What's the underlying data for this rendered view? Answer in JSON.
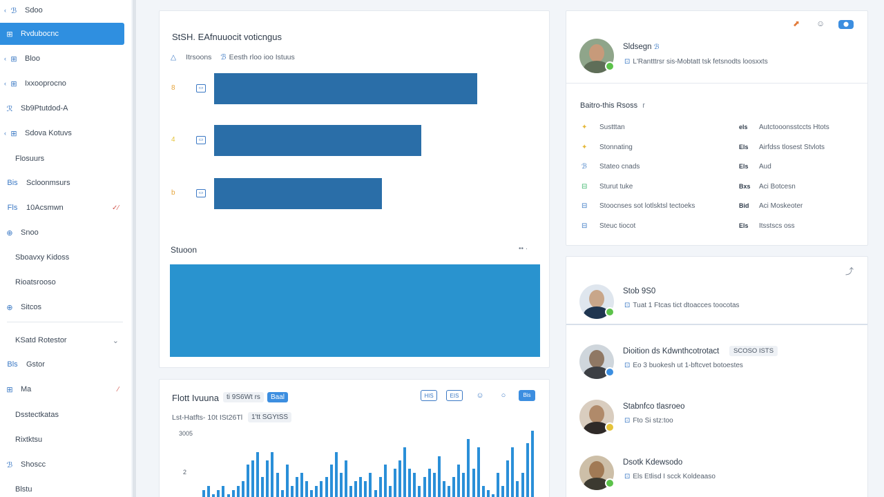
{
  "sidebar": {
    "items": [
      {
        "pre": "‹",
        "icon": "ℬ",
        "label": "Sdoo",
        "active": false
      },
      {
        "pre": "",
        "icon": "⊞",
        "label": "Rvdubocnc",
        "active": true
      },
      {
        "pre": "‹",
        "icon": "⊞",
        "label": "Bloo",
        "active": false
      },
      {
        "pre": "‹",
        "icon": "⊞",
        "label": "Ixxooprocno",
        "active": false
      },
      {
        "pre": "",
        "icon": "ℛ",
        "label": "Sb9Ptutdod-A",
        "active": false
      },
      {
        "pre": "‹",
        "icon": "⊞",
        "label": "Sdova Kotuvs",
        "active": false
      },
      {
        "pre": "",
        "icon": "",
        "label": "Flosuurs",
        "active": false
      },
      {
        "pre": "",
        "icon": "Bis",
        "label": "Scloonmsurs",
        "active": false
      },
      {
        "pre": "",
        "icon": "Fls",
        "label": "10Acsmwn",
        "right": "✓⁄",
        "active": false
      },
      {
        "pre": "",
        "icon": "⊕",
        "label": "Snoo",
        "active": false
      },
      {
        "pre": "",
        "icon": "",
        "label": "Sboavxy Kidoss",
        "active": false
      },
      {
        "pre": "",
        "icon": "",
        "label": "Rioatsrooso",
        "active": false
      },
      {
        "pre": "",
        "icon": "⊕",
        "label": "Sitcos",
        "active": false
      },
      {
        "pre": "",
        "icon": "",
        "label": "KSatd Rotestor",
        "chev": "⌄",
        "active": false
      },
      {
        "pre": "",
        "icon": "Bls",
        "label": "Gstor",
        "active": false
      },
      {
        "pre": "",
        "icon": "⊞",
        "label": "Ma",
        "right": "⁄",
        "active": false
      },
      {
        "pre": "",
        "icon": "",
        "label": "Dsstectkatas",
        "active": false
      },
      {
        "pre": "",
        "icon": "",
        "label": "Rixtktsu",
        "active": false
      },
      {
        "pre": "",
        "icon": "ℬ",
        "label": "Shoscc",
        "active": false
      },
      {
        "pre": "",
        "icon": "",
        "label": "Blstu",
        "active": false
      }
    ]
  },
  "hbar_card": {
    "title": "StSH. EAfnuuocit voticngus",
    "subtitle_a": "Itrsoons",
    "subtitle_b": "Eesth rloo ioo Istuus",
    "rows": [
      {
        "icon": "8",
        "icon_color": "#e5a33a",
        "value": 0.8
      },
      {
        "icon": "4",
        "icon_color": "#e5c33a",
        "value": 0.63
      },
      {
        "icon": "b",
        "icon_color": "#e5a33a",
        "value": 0.51
      }
    ],
    "section_title": "Stuoon",
    "section_dots": "•• ·"
  },
  "col_card": {
    "title": "Flott Ivuuna",
    "pill_grey": "ti 9S6Wt rs",
    "pill_blue": "Baal",
    "sub_a": "Lst-Hatfts- 10t ISt26Tl",
    "sub_b": "1'tt SGYtSS",
    "tools": [
      "HIS",
      "EIS",
      "☺",
      "○",
      "Bis"
    ],
    "y_ticks": [
      "3005",
      "2"
    ],
    "chart_data": {
      "type": "bar",
      "values": [
        2,
        3,
        1,
        2,
        3,
        1,
        2,
        3,
        4,
        8,
        9,
        11,
        5,
        9,
        11,
        6,
        2,
        8,
        3,
        5,
        6,
        4,
        2,
        3,
        4,
        5,
        8,
        11,
        6,
        9,
        3,
        4,
        5,
        4,
        6,
        2,
        5,
        8,
        3,
        7,
        9,
        12,
        7,
        6,
        3,
        5,
        7,
        6,
        10,
        4,
        3,
        5,
        8,
        6,
        14,
        7,
        12,
        3,
        2,
        1,
        6,
        3,
        9,
        12,
        4,
        6,
        13,
        16
      ]
    }
  },
  "profile_card": {
    "top_icons": [
      "⬈",
      "☺",
      "⬤"
    ],
    "name": "Sldsegn",
    "name_icon": "ℬ",
    "sub": "L'Rantttrsr  sis-Mobtatt tsk fetsnodts  loosxxts",
    "info_title": "Baitro-this Rsoss",
    "info_title_suffix": "r",
    "info_rows": [
      {
        "icon": "✦",
        "icon_color": "#e5b83a",
        "label": "Sustttan",
        "code": "els",
        "value": "Autctooonsstccts Htots"
      },
      {
        "icon": "✦",
        "icon_color": "#e5b83a",
        "label": "Stonnating",
        "code": "Els",
        "value": "Airfdss tlosest Stvlots"
      },
      {
        "icon": "ℬ",
        "icon_color": "#3a78c4",
        "label": "Stateo cnads",
        "code": "Els",
        "value": "Aud"
      },
      {
        "icon": "⊟",
        "icon_color": "#3ab56a",
        "label": "Sturut tuke",
        "code": "Bxs",
        "value": "Aci Botcesn"
      },
      {
        "icon": "⊟",
        "icon_color": "#3a78c4",
        "label": "Stoocnses  sot lotlsktsl tectoeks",
        "code": "Bid",
        "value": "Aci Moskeoter"
      },
      {
        "icon": "⊟",
        "icon_color": "#3a78c4",
        "label": "Steuc tiocot",
        "code": "Els",
        "value": "Itsstscs oss"
      }
    ]
  },
  "people": [
    {
      "name": "Stob 9S0",
      "sub": "Tuat  1  Ftcas  tict dtoacces  toocotas",
      "badge_color": "#5cc24a",
      "tag": ""
    },
    {
      "name": "Dioition ds Kdwnthcotrotact",
      "sub": "Eo  3  buokesh  ut  1-bftcvet  botoestes",
      "badge_color": "#3c8ee0",
      "tag": "SCOSO ISTS"
    },
    {
      "name": "Stabnfco tlasroeo",
      "sub": "Fto  Si  stz:too",
      "badge_color": "#e5c33a",
      "tag": ""
    },
    {
      "name": "Dsotk Kdewsodo",
      "sub": "Els  Etlisd  I  scck Koldeaaso",
      "badge_color": "#5cc24a",
      "tag": ""
    }
  ],
  "people_top_icon": "⤴"
}
